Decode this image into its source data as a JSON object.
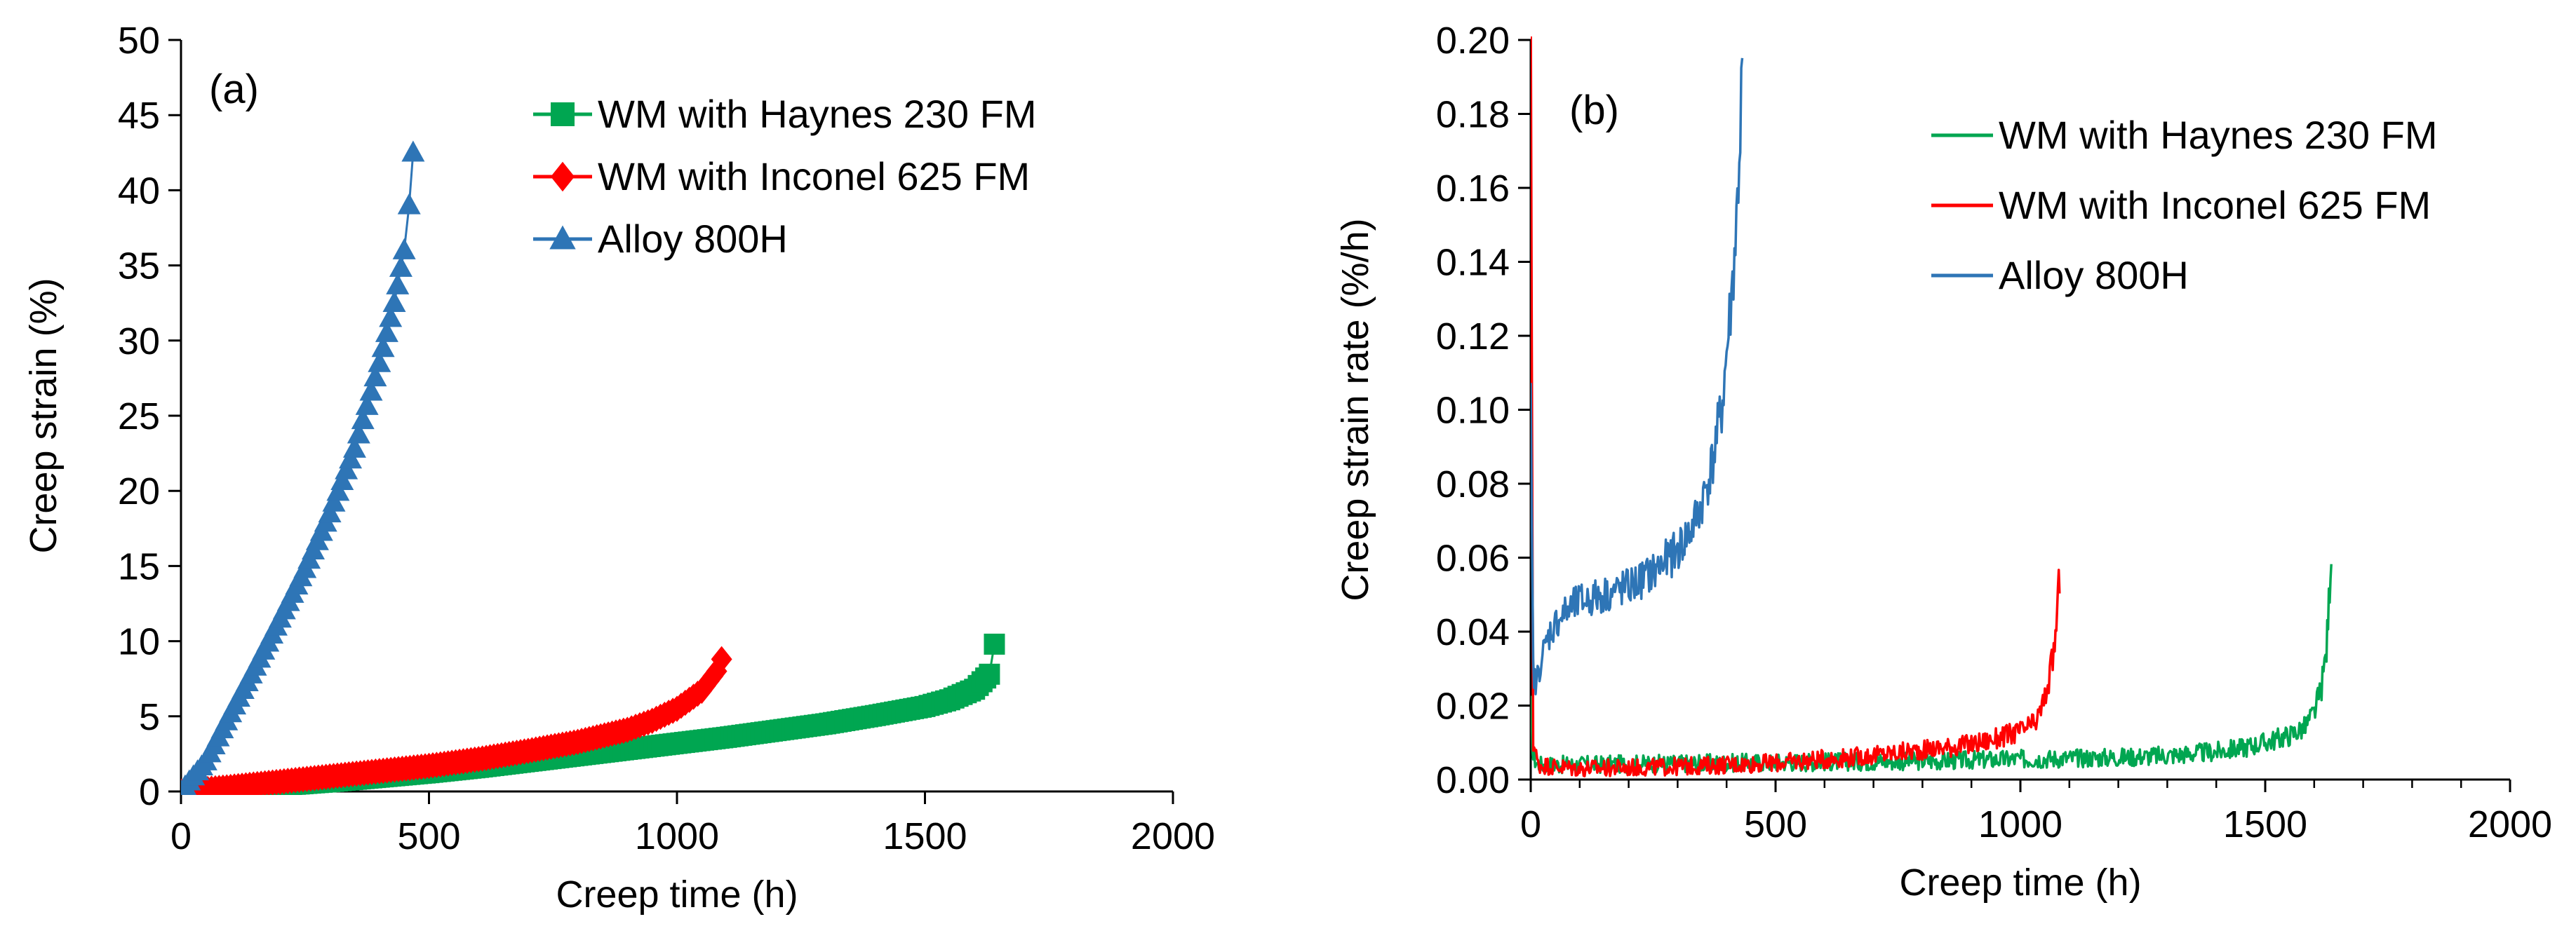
{
  "chart_data": [
    {
      "type": "scatter",
      "panel_label": "(a)",
      "xlabel": "Creep time (h)",
      "ylabel": "Creep strain (%)",
      "xlim": [
        0,
        2000
      ],
      "ylim": [
        0,
        50
      ],
      "xticks": [
        0,
        500,
        1000,
        1500,
        2000
      ],
      "yticks": [
        0,
        5,
        10,
        15,
        20,
        25,
        30,
        35,
        40,
        45,
        50
      ],
      "grid": false,
      "legend_position": "top-right",
      "series": [
        {
          "name": "WM with Haynes 230 FM",
          "color": "#00a651",
          "marker": "square",
          "x": [
            0,
            100,
            200,
            300,
            400,
            500,
            600,
            700,
            800,
            900,
            1000,
            1100,
            1200,
            1300,
            1400,
            1500,
            1550,
            1600,
            1630,
            1640
          ],
          "y": [
            0,
            0.2,
            0.4,
            0.65,
            0.95,
            1.25,
            1.6,
            2.0,
            2.4,
            2.8,
            3.2,
            3.6,
            4.05,
            4.5,
            5.05,
            5.65,
            6.1,
            6.8,
            7.8,
            9.8
          ]
        },
        {
          "name": "WM with Inconel 625 FM",
          "color": "#ff0000",
          "marker": "diamond",
          "x": [
            0,
            100,
            200,
            300,
            400,
            500,
            600,
            700,
            800,
            900,
            950,
            1000,
            1050,
            1080,
            1090
          ],
          "y": [
            0,
            0.3,
            0.65,
            1.0,
            1.35,
            1.7,
            2.15,
            2.7,
            3.3,
            4.1,
            4.7,
            5.5,
            6.7,
            8.0,
            8.8
          ]
        },
        {
          "name": "Alloy 800H",
          "color": "#2e75b6",
          "marker": "triangle",
          "x": [
            0,
            50,
            100,
            150,
            200,
            250,
            300,
            350,
            400,
            430,
            450,
            460,
            468
          ],
          "y": [
            0,
            2.0,
            5.2,
            8.3,
            11.5,
            14.8,
            18.5,
            22.8,
            28.5,
            32.5,
            36.0,
            39.0,
            42.5
          ]
        }
      ]
    },
    {
      "type": "line",
      "panel_label": "(b)",
      "xlabel": "Creep time (h)",
      "ylabel": "Creep strain rate (%/h)",
      "xlim": [
        0,
        2000
      ],
      "ylim": [
        0,
        0.2
      ],
      "xticks": [
        0,
        500,
        1000,
        1500,
        2000
      ],
      "yticks": [
        "0.00",
        "0.02",
        "0.04",
        "0.06",
        "0.08",
        "0.10",
        "0.12",
        "0.14",
        "0.16",
        "0.18",
        "0.20"
      ],
      "grid": false,
      "legend_position": "top-right",
      "series": [
        {
          "name": "WM with Haynes 230 FM",
          "color": "#00a651",
          "x": [
            0,
            5,
            15,
            50,
            100,
            200,
            400,
            600,
            800,
            1000,
            1200,
            1300,
            1400,
            1450,
            1500,
            1550,
            1580,
            1600,
            1615,
            1625,
            1630,
            1635
          ],
          "y": [
            0.02,
            0.006,
            0.004,
            0.004,
            0.004,
            0.0042,
            0.0045,
            0.0048,
            0.005,
            0.0055,
            0.006,
            0.0065,
            0.0075,
            0.0085,
            0.01,
            0.012,
            0.014,
            0.018,
            0.025,
            0.035,
            0.048,
            0.063
          ]
        },
        {
          "name": "WM with Inconel 625 FM",
          "color": "#ff0000",
          "x": [
            0,
            5,
            15,
            50,
            100,
            200,
            300,
            400,
            500,
            600,
            700,
            800,
            900,
            950,
            1000,
            1030,
            1040,
            1050,
            1060,
            1070,
            1075,
            1080
          ],
          "y": [
            0.2,
            0.01,
            0.004,
            0.0035,
            0.003,
            0.0032,
            0.0035,
            0.004,
            0.0045,
            0.0055,
            0.0065,
            0.008,
            0.0095,
            0.011,
            0.013,
            0.015,
            0.018,
            0.022,
            0.028,
            0.036,
            0.045,
            0.055
          ]
        },
        {
          "name": "Alloy 800H",
          "color": "#2e75b6",
          "x": [
            0,
            5,
            10,
            20,
            40,
            60,
            80,
            100,
            150,
            200,
            250,
            300,
            330,
            350,
            370,
            390,
            400,
            410,
            420,
            428,
            432
          ],
          "y": [
            0.1,
            0.03,
            0.025,
            0.032,
            0.04,
            0.044,
            0.046,
            0.048,
            0.05,
            0.052,
            0.056,
            0.062,
            0.068,
            0.075,
            0.085,
            0.1,
            0.115,
            0.13,
            0.15,
            0.175,
            0.192
          ]
        }
      ]
    }
  ]
}
